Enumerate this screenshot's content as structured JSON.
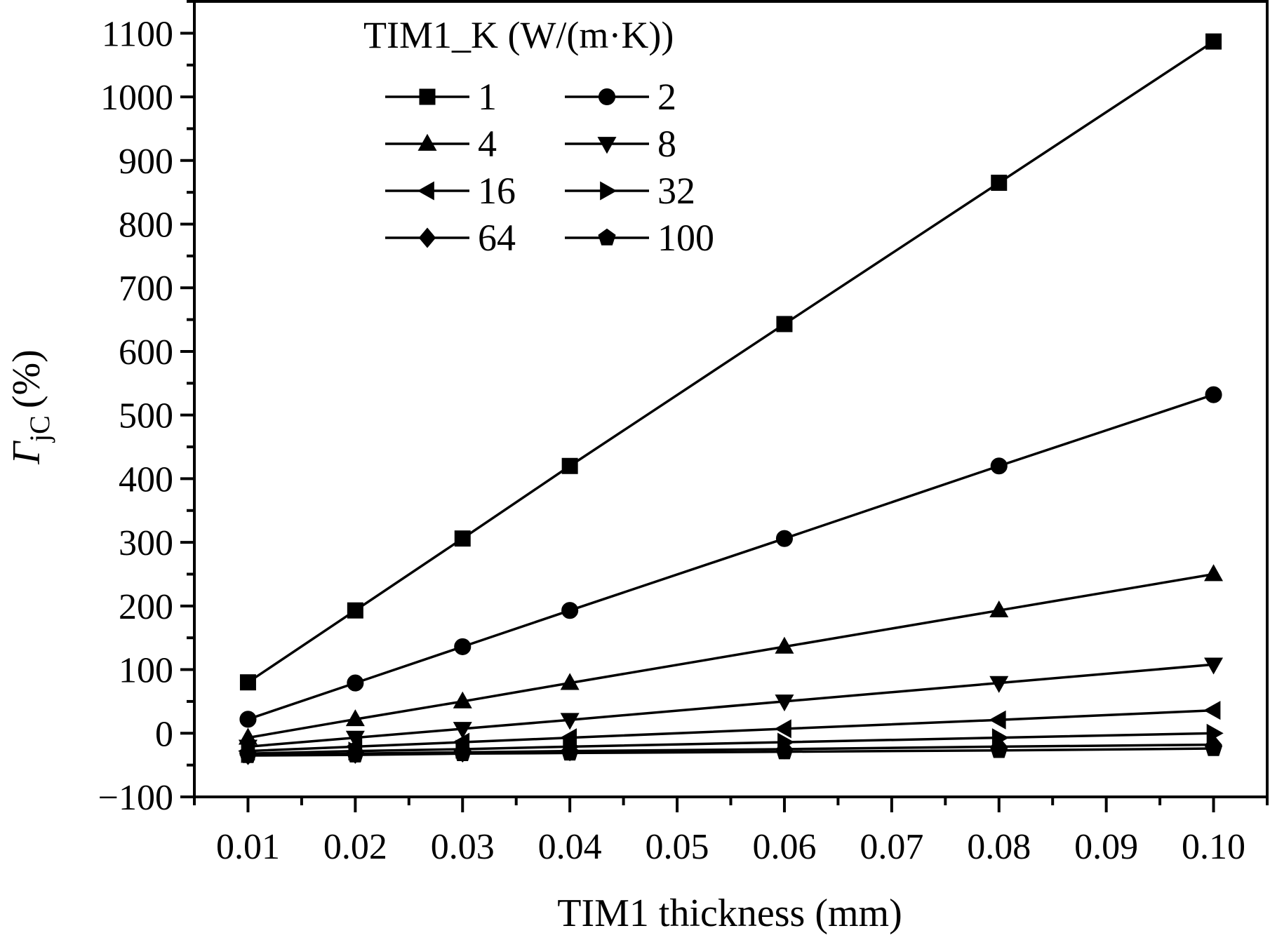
{
  "chart_data": {
    "type": "line",
    "title": "",
    "xlabel": "TIM1 thickness (mm)",
    "ylabel_main": "Γ",
    "ylabel_sub": "jC",
    "ylabel_unit": "(%)",
    "x": [
      0.01,
      0.02,
      0.03,
      0.04,
      0.06,
      0.08,
      0.1
    ],
    "x_ticks": [
      "0.01",
      "0.02",
      "0.03",
      "0.04",
      "0.05",
      "0.06",
      "0.07",
      "0.08",
      "0.09",
      "0.10"
    ],
    "x_tick_values": [
      0.01,
      0.02,
      0.03,
      0.04,
      0.05,
      0.06,
      0.07,
      0.08,
      0.09,
      0.1
    ],
    "xlim": [
      0.005,
      0.105
    ],
    "y_ticks": [
      "1100",
      "1000",
      "900",
      "800",
      "700",
      "600",
      "500",
      "400",
      "300",
      "200",
      "100",
      "0",
      "−100"
    ],
    "y_tick_values": [
      1100,
      1000,
      900,
      800,
      700,
      600,
      500,
      400,
      300,
      200,
      100,
      0,
      -100
    ],
    "ylim": [
      -100,
      1150
    ],
    "grid": false,
    "legend": {
      "title": "TIM1_K (W/(m·K))",
      "placement": "top-left",
      "columns": 2
    },
    "series": [
      {
        "name": "1",
        "marker": "square",
        "values": [
          80,
          193,
          306,
          420,
          643,
          865,
          1087
        ]
      },
      {
        "name": "2",
        "marker": "circle",
        "values": [
          22,
          79,
          136,
          193,
          306,
          420,
          532
        ]
      },
      {
        "name": "4",
        "marker": "triangle-up",
        "values": [
          -7,
          22,
          50,
          79,
          136,
          193,
          250
        ]
      },
      {
        "name": "8",
        "marker": "triangle-down",
        "values": [
          -21,
          -7,
          7,
          21,
          50,
          79,
          108
        ]
      },
      {
        "name": "16",
        "marker": "triangle-left",
        "values": [
          -28,
          -21,
          -14,
          -7,
          7,
          21,
          36
        ]
      },
      {
        "name": "32",
        "marker": "triangle-right",
        "values": [
          -32,
          -28,
          -25,
          -21,
          -14,
          -7,
          0
        ]
      },
      {
        "name": "64",
        "marker": "diamond",
        "values": [
          -34,
          -32,
          -30,
          -28,
          -25,
          -21,
          -18
        ]
      },
      {
        "name": "100",
        "marker": "pentagon",
        "values": [
          -35,
          -34,
          -32,
          -31,
          -29,
          -27,
          -24
        ]
      }
    ]
  }
}
